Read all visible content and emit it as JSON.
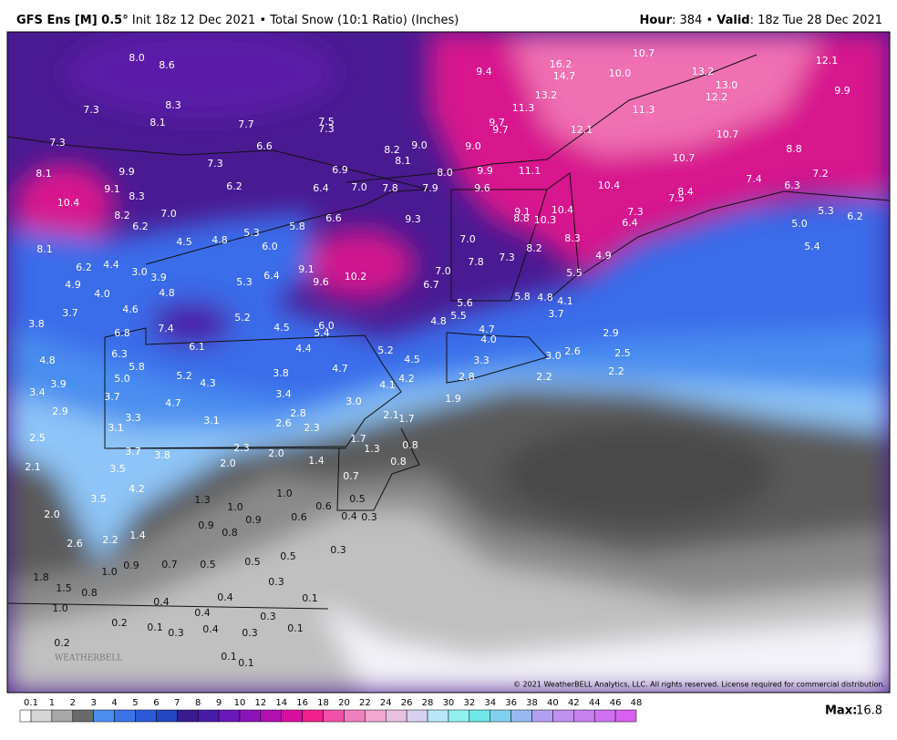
{
  "header": {
    "model": "GFS Ens [M] 0.5°",
    "init": "Init 18z 12 Dec 2021",
    "product": "• Total Snow (10:1 Ratio) (Inches)",
    "hour_label": "Hour",
    "hour": ": 384 • ",
    "valid_label": "Valid",
    "valid": ": 18z Tue 28 Dec 2021"
  },
  "map": {
    "labels": [
      "8.0",
      "8.6",
      "7.3",
      "8.3",
      "8.1",
      "7.7",
      "7.5",
      "7.3",
      "6.6",
      "7.3",
      "7.3",
      "8.2",
      "9.0",
      "9.0",
      "8.1",
      "6.9",
      "8.0",
      "9.9",
      "11.1",
      "6.2",
      "6.4",
      "7.0",
      "7.8",
      "7.9",
      "9.6",
      "8.1",
      "9.9",
      "9.1",
      "8.3",
      "10.4",
      "8.2",
      "7.0",
      "6.2",
      "9.3",
      "6.6",
      "5.8",
      "5.3",
      "4.5",
      "4.8",
      "6.0",
      "9.1",
      "8.8",
      "10.3",
      "10.4",
      "10.4",
      "7.3",
      "6.4",
      "7.5",
      "8.4",
      "8.1",
      "6.2",
      "4.4",
      "3.0",
      "3.9",
      "9.1",
      "10.2",
      "9.6",
      "7.0",
      "7.8",
      "7.3",
      "8.2",
      "8.3",
      "7.0",
      "6.7",
      "5.5",
      "4.9",
      "4.9",
      "4.0",
      "4.8",
      "5.3",
      "6.4",
      "5.6",
      "5.8",
      "4.8",
      "4.1",
      "3.7",
      "3.8",
      "3.7",
      "4.6",
      "5.2",
      "4.8",
      "5.5",
      "6.0",
      "5.4",
      "7.4",
      "6.8",
      "4.5",
      "4.7",
      "4.0",
      "6.1",
      "4.4",
      "5.2",
      "6.3",
      "4.8",
      "5.8",
      "5.0",
      "4.5",
      "4.7",
      "3.3",
      "5.2",
      "4.3",
      "3.8",
      "4.2",
      "4.1",
      "3.9",
      "3.4",
      "3.7",
      "4.7",
      "3.4",
      "3.0",
      "2.8",
      "2.2",
      "2.9",
      "3.3",
      "3.1",
      "2.8",
      "2.6",
      "2.3",
      "2.1",
      "1.7",
      "1.9",
      "3.1",
      "2.5",
      "1.7",
      "1.3",
      "2.3",
      "2.0",
      "3.7",
      "3.8",
      "2.0",
      "0.8",
      "1.4",
      "0.8",
      "3.5",
      "4.2",
      "2.1",
      "0.7",
      "1.0",
      "0.5",
      "1.3",
      "1.0",
      "3.5",
      "0.9",
      "0.6",
      "0.6",
      "0.4",
      "0.3",
      "2.0",
      "0.9",
      "0.8",
      "1.4",
      "2.6",
      "2.2",
      "0.3",
      "0.5",
      "0.5",
      "0.5",
      "0.7",
      "0.9",
      "1.0",
      "0.3",
      "1.8",
      "1.5",
      "0.8",
      "0.1",
      "0.4",
      "0.4",
      "0.4",
      "1.0",
      "0.3",
      "0.2",
      "0.1",
      "0.3",
      "0.4",
      "0.3",
      "0.1",
      "0.2",
      "0.1",
      "0.1",
      "16.2",
      "14.7",
      "10.7",
      "12.1",
      "9.9",
      "13.2",
      "13.0",
      "12.2",
      "10.0",
      "9.4",
      "13.2",
      "11.3",
      "9.7",
      "9.7",
      "11.3",
      "12.1",
      "10.7",
      "10.7",
      "8.8",
      "7.2",
      "7.4",
      "6.3",
      "5.3",
      "6.2",
      "5.0",
      "5.4",
      "2.9",
      "2.6",
      "2.5",
      "2.2",
      "3.0"
    ],
    "copyright": "© 2021 WeatherBELL Analytics, LLC. All rights reserved. License required for commercial distribution.",
    "logo": "WEATHERBELL"
  },
  "colorbar": {
    "ticks": [
      "0.1",
      "1",
      "2",
      "3",
      "4",
      "5",
      "6",
      "7",
      "8",
      "9",
      "10",
      "12",
      "14",
      "16",
      "18",
      "20",
      "22",
      "24",
      "26",
      "28",
      "30",
      "32",
      "34",
      "36",
      "38",
      "40",
      "42",
      "44",
      "46",
      "48"
    ],
    "colors": [
      "#ffffff",
      "#d6d6d6",
      "#a8a8a8",
      "#6a6a6a",
      "#4a8ef0",
      "#3a74e8",
      "#2a5ad8",
      "#2246c0",
      "#3a1a90",
      "#4a1aa8",
      "#6a18b8",
      "#8a14b8",
      "#b010b0",
      "#d810a0",
      "#f0208c",
      "#f050a8",
      "#f080c0",
      "#f0a8d0",
      "#e8c0e0",
      "#d8d0f0",
      "#b8e8f8",
      "#90f0f0",
      "#70e8e8",
      "#80d0f0",
      "#98b8f0",
      "#b0a0f0",
      "#c090f0",
      "#c880f0",
      "#d070f0",
      "#d860f0"
    ],
    "max_label": "Max:",
    "max": "16.8"
  }
}
